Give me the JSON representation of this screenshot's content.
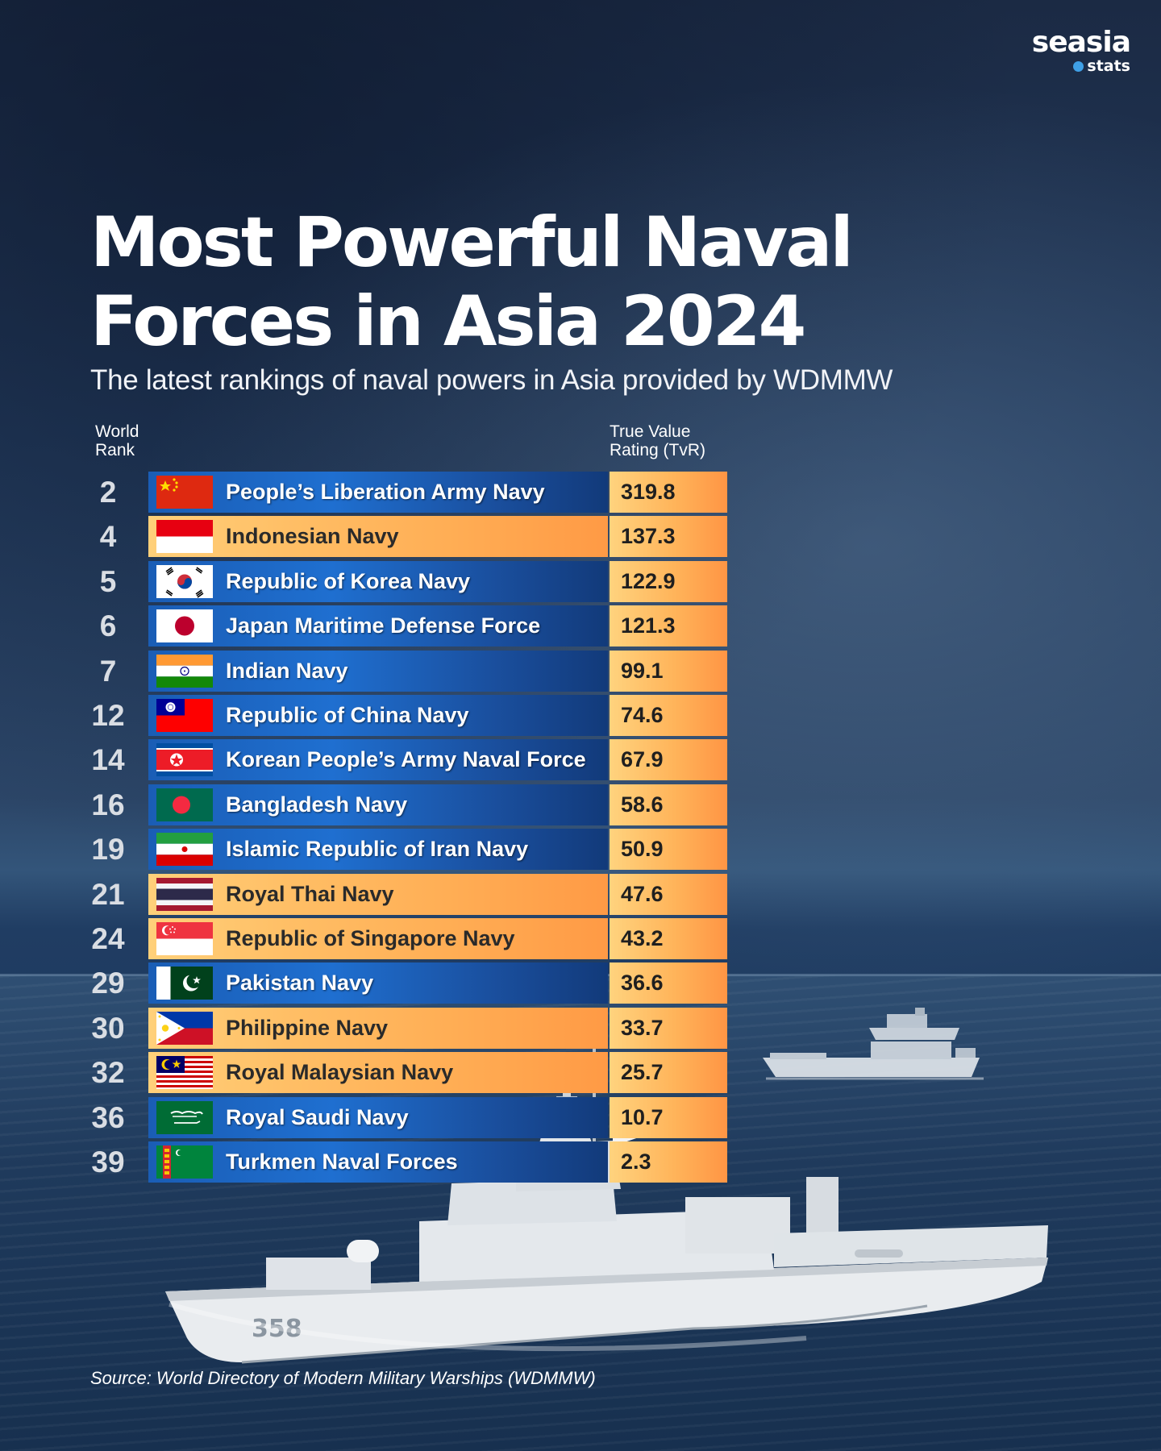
{
  "logo": {
    "main": "seasia",
    "sub": "stats"
  },
  "title_line1": "Most Powerful Naval",
  "title_line2": "Forces in Asia 2024",
  "subtitle": "The latest rankings of naval powers in Asia provided by WDMMW",
  "columns": {
    "rank_line1": "World",
    "rank_line2": "Rank",
    "tvr_line1": "True Value",
    "tvr_line2": "Rating (TvR)"
  },
  "source": "Source: World Directory of Modern Military Warships (WDMMW)",
  "ship_hull_number": "358",
  "colors": {
    "blue_band": "#1f6fd0",
    "orange_band": "#ffb45a",
    "tvr_cell": "#ffb45a"
  },
  "chart_data": {
    "type": "table",
    "title": "Most Powerful Naval Forces in Asia 2024",
    "subtitle": "The latest rankings of naval powers in Asia provided by WDMMW",
    "columns": [
      "World Rank",
      "",
      "True Value Rating (TvR)"
    ],
    "rows": [
      {
        "rank": "2",
        "name": "People’s Liberation Army Navy",
        "tvr": "319.8",
        "flag": "china",
        "band": "blue"
      },
      {
        "rank": "4",
        "name": "Indonesian Navy",
        "tvr": "137.3",
        "flag": "indonesia",
        "band": "orange"
      },
      {
        "rank": "5",
        "name": "Republic of Korea Navy",
        "tvr": "122.9",
        "flag": "south-korea",
        "band": "blue"
      },
      {
        "rank": "6",
        "name": "Japan Maritime Defense Force",
        "tvr": "121.3",
        "flag": "japan",
        "band": "blue"
      },
      {
        "rank": "7",
        "name": "Indian Navy",
        "tvr": "99.1",
        "flag": "india",
        "band": "blue"
      },
      {
        "rank": "12",
        "name": "Republic of China Navy",
        "tvr": "74.6",
        "flag": "taiwan",
        "band": "blue"
      },
      {
        "rank": "14",
        "name": "Korean People’s Army Naval Force",
        "tvr": "67.9",
        "flag": "north-korea",
        "band": "blue"
      },
      {
        "rank": "16",
        "name": "Bangladesh Navy",
        "tvr": "58.6",
        "flag": "bangladesh",
        "band": "blue"
      },
      {
        "rank": "19",
        "name": "Islamic Republic of Iran Navy",
        "tvr": "50.9",
        "flag": "iran",
        "band": "blue"
      },
      {
        "rank": "21",
        "name": "Royal Thai Navy",
        "tvr": "47.6",
        "flag": "thailand",
        "band": "orange"
      },
      {
        "rank": "24",
        "name": "Republic of Singapore Navy",
        "tvr": "43.2",
        "flag": "singapore",
        "band": "orange"
      },
      {
        "rank": "29",
        "name": "Pakistan Navy",
        "tvr": "36.6",
        "flag": "pakistan",
        "band": "blue"
      },
      {
        "rank": "30",
        "name": "Philippine Navy",
        "tvr": "33.7",
        "flag": "philippines",
        "band": "orange"
      },
      {
        "rank": "32",
        "name": "Royal Malaysian Navy",
        "tvr": "25.7",
        "flag": "malaysia",
        "band": "orange"
      },
      {
        "rank": "36",
        "name": "Royal Saudi Navy",
        "tvr": "10.7",
        "flag": "saudi-arabia",
        "band": "blue"
      },
      {
        "rank": "39",
        "name": "Turkmen Naval Forces",
        "tvr": "2.3",
        "flag": "turkmenistan",
        "band": "blue"
      }
    ]
  }
}
